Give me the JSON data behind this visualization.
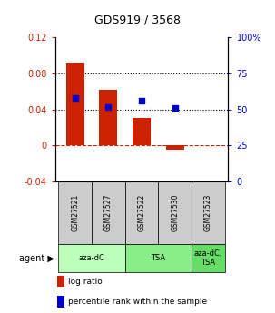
{
  "title": "GDS919 / 3568",
  "samples": [
    "GSM27521",
    "GSM27527",
    "GSM27522",
    "GSM27530",
    "GSM27523"
  ],
  "log_ratio": [
    0.092,
    0.062,
    0.031,
    -0.005,
    null
  ],
  "percentile_rank": [
    58,
    52,
    56,
    51,
    null
  ],
  "ylim_left": [
    -0.04,
    0.12
  ],
  "ylim_right": [
    0,
    100
  ],
  "yticks_left": [
    -0.04,
    0.0,
    0.04,
    0.08,
    0.12
  ],
  "yticks_right": [
    0,
    25,
    50,
    75,
    100
  ],
  "hlines_dotted": [
    0.04,
    0.08
  ],
  "hline_zero": 0.0,
  "bar_color": "#cc2200",
  "dot_color": "#0000cc",
  "bar_width": 0.55,
  "agent_groups": [
    {
      "label": "aza-dC",
      "cols": [
        0,
        1
      ],
      "color": "#bbffbb"
    },
    {
      "label": "TSA",
      "cols": [
        2,
        3
      ],
      "color": "#88ee88"
    },
    {
      "label": "aza-dC,\nTSA",
      "cols": [
        4
      ],
      "color": "#66dd66"
    }
  ],
  "agent_label": "agent",
  "legend_items": [
    {
      "color": "#cc2200",
      "label": "log ratio"
    },
    {
      "color": "#0000cc",
      "label": "percentile rank within the sample"
    }
  ],
  "sample_box_color": "#cccccc",
  "tick_color_left": "#cc2200",
  "tick_color_right": "#0000cc",
  "left_tick_labels": [
    "-0.04",
    "0",
    "0.04",
    "0.08",
    "0.12"
  ],
  "right_tick_labels": [
    "0",
    "25",
    "50",
    "75",
    "100%"
  ]
}
